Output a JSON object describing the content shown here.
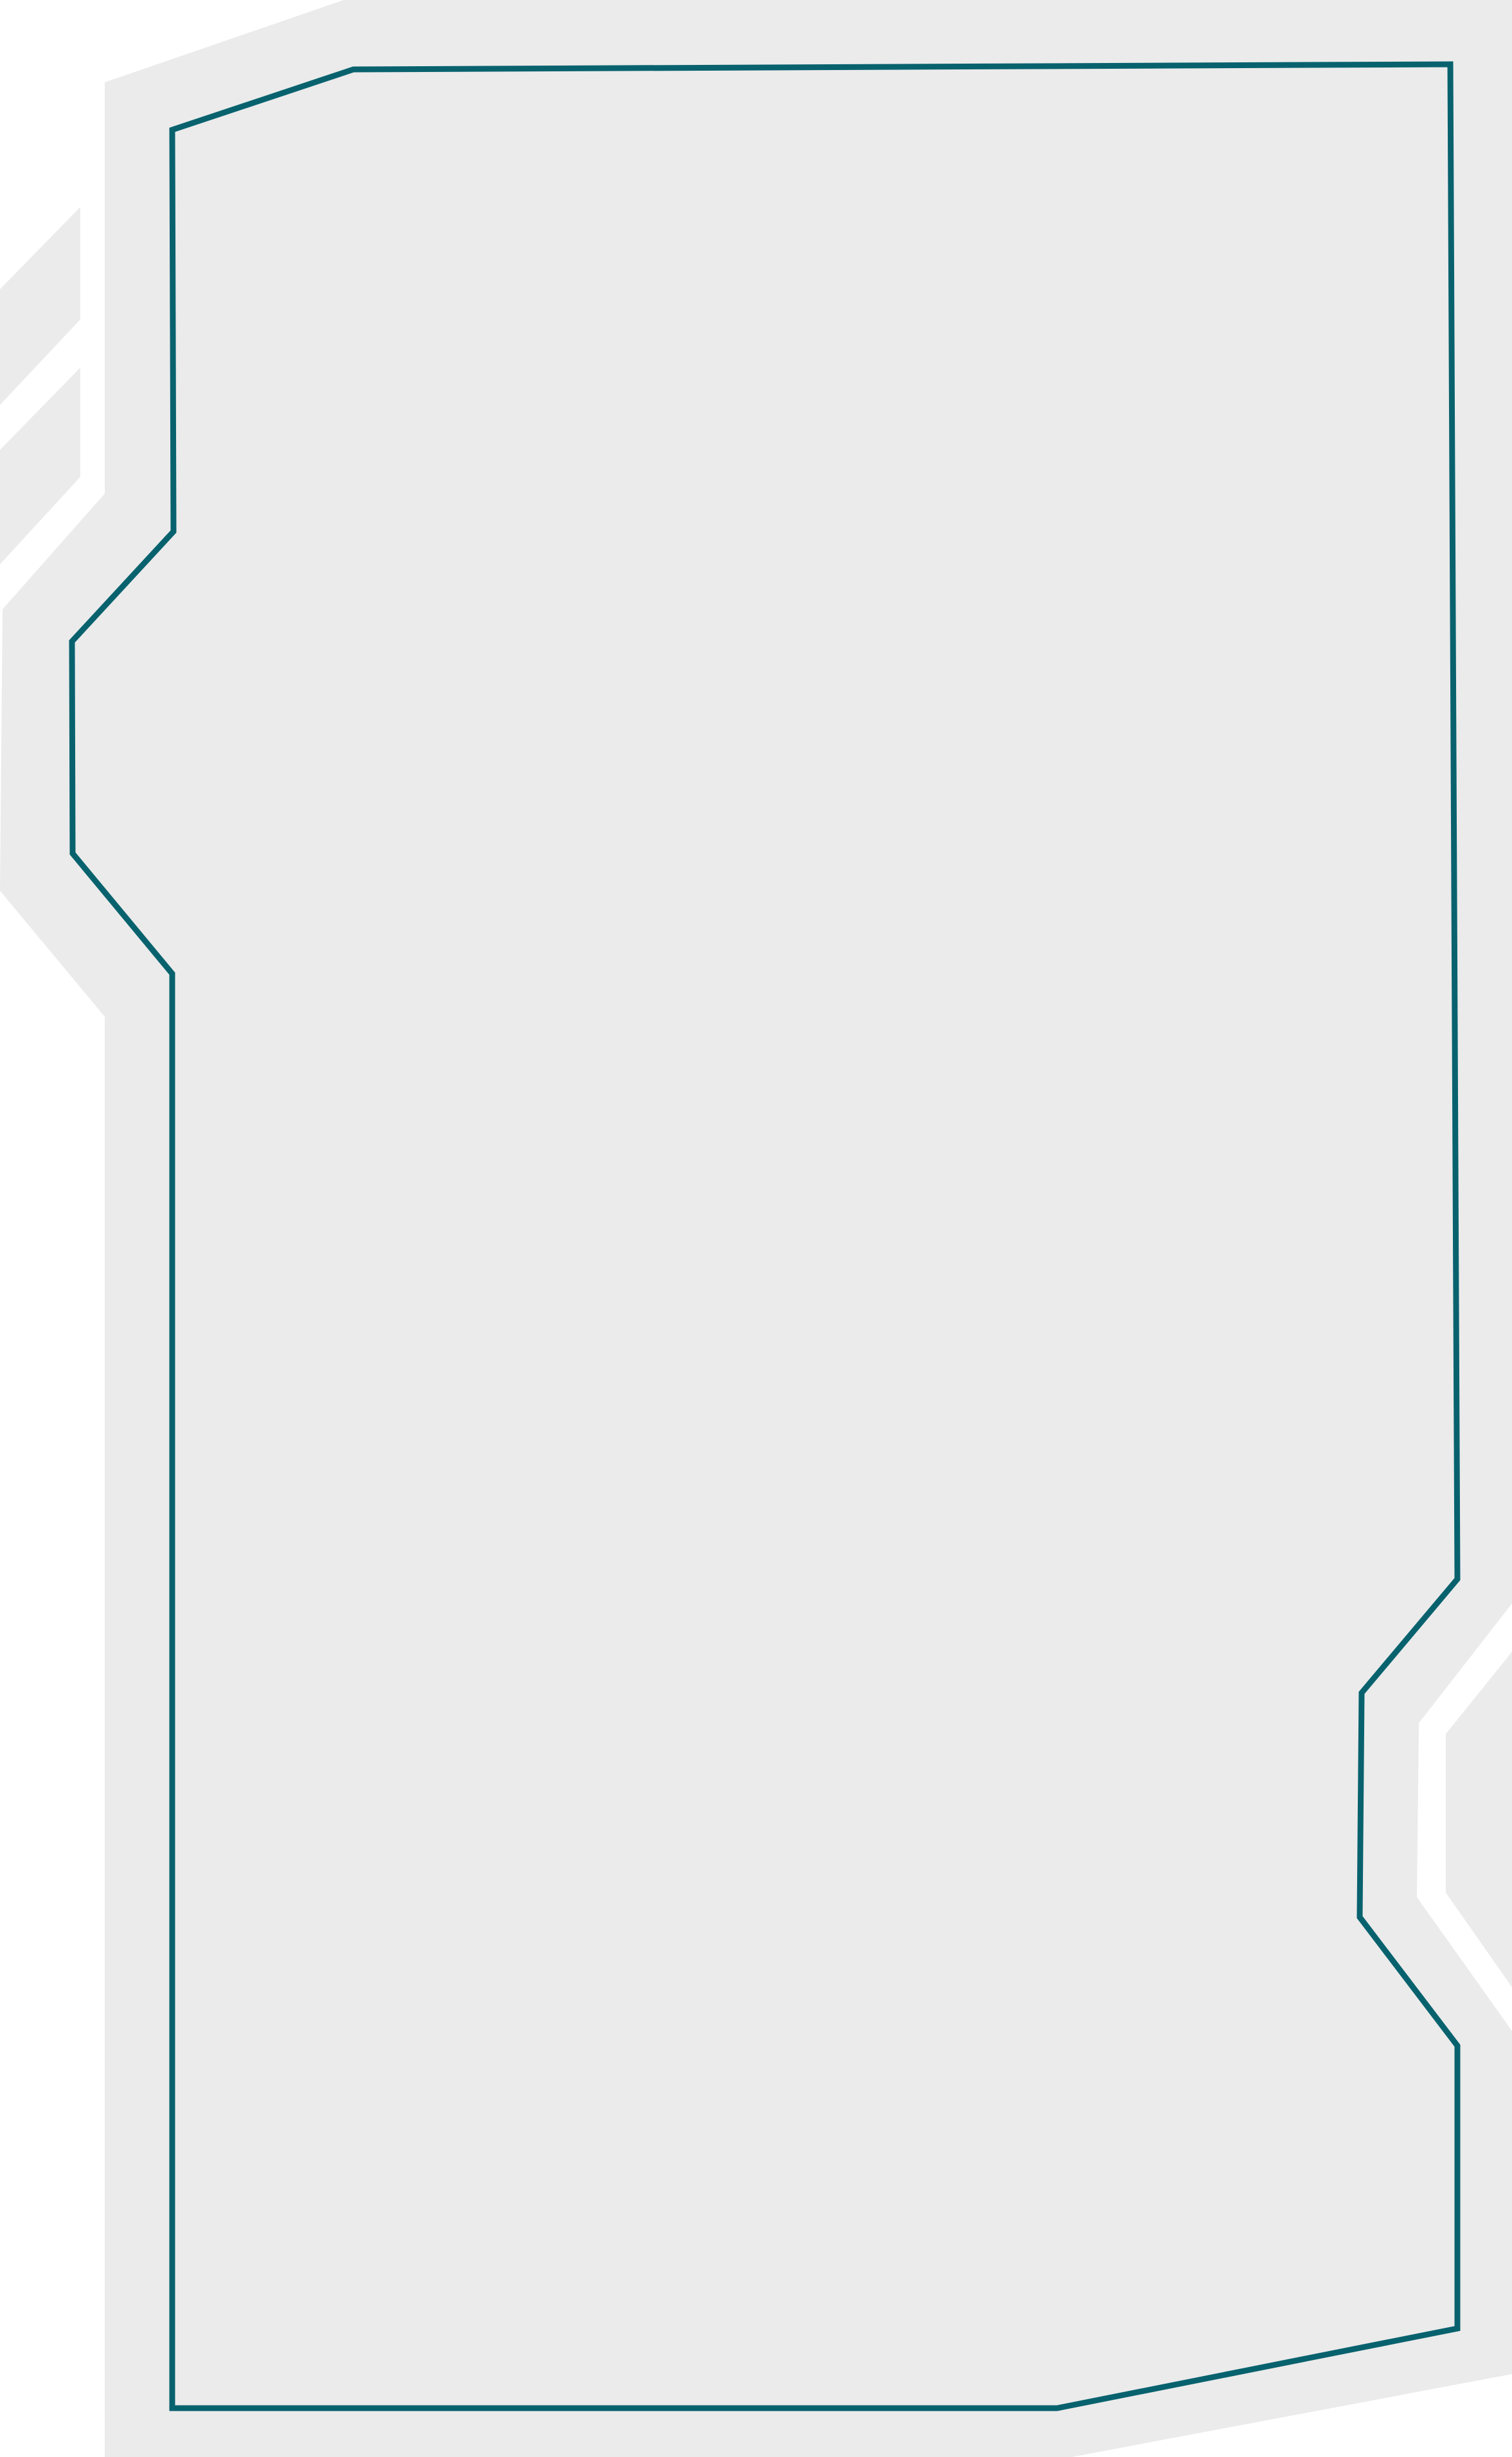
{
  "colors": {
    "page_background": "#ffffff",
    "panel_fill": "#ebebeb",
    "accent_shapes": "#ebebeb",
    "frame_outline": "#08626e"
  },
  "frame": {
    "icon": "hud-frame-outline-icon"
  }
}
